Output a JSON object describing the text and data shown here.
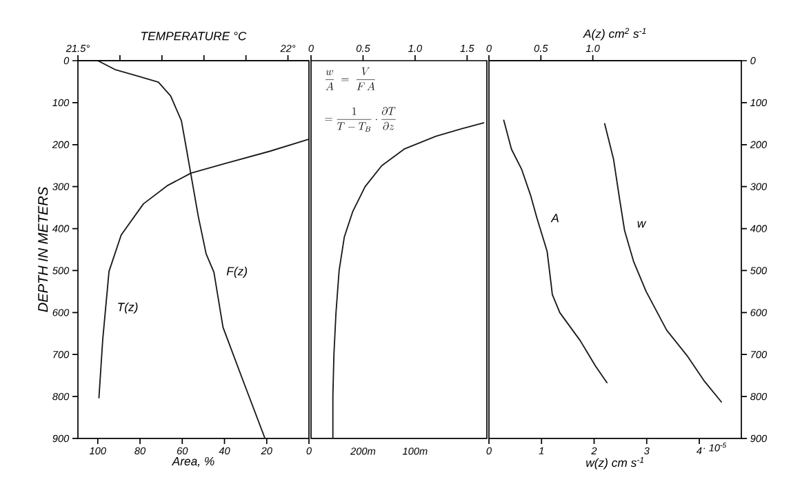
{
  "chart_data": [
    {
      "type": "line",
      "xlabel": "Area, %",
      "ylabel": "DEPTH IN METERS",
      "x2label": "TEMPERATURE °C",
      "xlim": [
        109.4,
        0
      ],
      "xticks": [
        100,
        80,
        60,
        40,
        20,
        0
      ],
      "x2lim": [
        21.5,
        22.05
      ],
      "x2ticks": [
        {
          "value": 21.5,
          "label": "21.5°"
        },
        {
          "value": 21.6,
          "label": null
        },
        {
          "value": 21.7,
          "label": null
        },
        {
          "value": 21.8,
          "label": null
        },
        {
          "value": 21.9,
          "label": null
        },
        {
          "value": 22.0,
          "label": "22°"
        }
      ],
      "ylim": [
        900,
        0
      ],
      "yticks": [
        0,
        100,
        200,
        300,
        400,
        500,
        600,
        700,
        800,
        900
      ],
      "series": [
        {
          "name": "T(z)",
          "color": "#1a1a1a",
          "axis": "x2",
          "x": [
            21.55,
            21.559,
            21.574,
            21.603,
            21.656,
            21.714,
            21.769,
            21.846,
            21.956,
            22.05
          ],
          "values": [
            803,
            665,
            502,
            415,
            341,
            297,
            268,
            246,
            216,
            187
          ]
        },
        {
          "name": "F(z)",
          "color": "#1a1a1a",
          "x": [
            100,
            91.9,
            81.6,
            71.3,
            65.5,
            60.4,
            58.3,
            56.0,
            52.4,
            48.7,
            45.0,
            40.7,
            31.9,
            20.8
          ],
          "values": [
            0,
            21,
            36,
            51,
            84,
            143,
            202,
            268,
            371,
            460,
            504,
            635,
            753,
            900
          ]
        }
      ]
    },
    {
      "type": "line",
      "tick_labels": "x",
      "xlim": [
        0,
        1.69
      ],
      "xticks": [
        0,
        0.5,
        {
          "value": 1.0,
          "label": "1.0"
        },
        {
          "value": 1.5,
          "label": "1.5"
        }
      ],
      "ylim": [
        900,
        0
      ],
      "yticks": [
        0,
        100,
        200,
        300,
        400,
        500,
        600,
        700,
        800,
        900
      ],
      "annotations": [
        "\\frac{w}{A}\\;=\\;\\frac{V}{F\\,A}",
        "=\\frac{1}{T-T_B}\\cdot\\frac{\\partial T}{\\partial z}",
        "200m",
        "100m"
      ],
      "series": [
        {
          "color": "#1a1a1a",
          "x": [
            0.21,
            0.21,
            0.22,
            0.24,
            0.27,
            0.32,
            0.4,
            0.52,
            0.68,
            0.9,
            1.2,
            1.45,
            1.66
          ],
          "values": [
            900,
            800,
            700,
            600,
            500,
            420,
            360,
            300,
            250,
            210,
            180,
            162,
            148
          ]
        }
      ]
    },
    {
      "type": "line",
      "xlabel": "w(z)    cm s$^{-1}$",
      "x2label": "A(z)    cm$^{2}$ s$^{-1}$",
      "xlim": [
        0,
        4.8
      ],
      "xticks": [
        0,
        1,
        2,
        3,
        4
      ],
      "annotations": [
        "· 10$^{-5}$"
      ],
      "x2lim": [
        0,
        2.43
      ],
      "x2ticks": [
        0,
        0.5,
        {
          "value": 1.0,
          "label": "1.0"
        }
      ],
      "ylim": [
        900,
        0
      ],
      "yticks": [
        0,
        100,
        200,
        300,
        400,
        500,
        600,
        700,
        800,
        900
      ],
      "series": [
        {
          "name": "A",
          "color": "#1a1a1a",
          "axis": "x2",
          "x": [
            0.143,
            0.217,
            0.315,
            0.4,
            0.462,
            0.56,
            0.596,
            0.61,
            0.682,
            0.879,
            1.027,
            1.136
          ],
          "values": [
            142,
            211,
            259,
            320,
            375,
            454,
            527,
            557,
            600,
            667,
            728,
            767
          ]
        },
        {
          "name": "w",
          "color": "#1a1a1a",
          "x": [
            2.2,
            2.37,
            2.48,
            2.58,
            2.75,
            2.99,
            3.38,
            3.77,
            4.1,
            4.42
          ],
          "values": [
            150,
            235,
            326,
            405,
            478,
            550,
            642,
            703,
            764,
            813
          ]
        }
      ]
    }
  ]
}
